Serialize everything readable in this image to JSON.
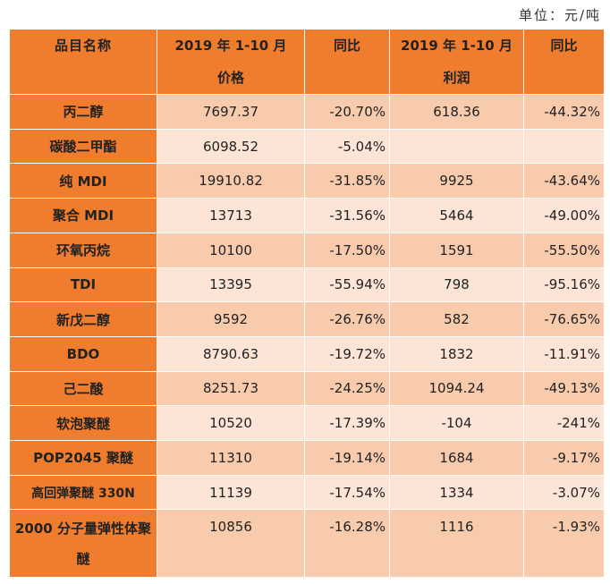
{
  "unit_label": "单位：元/吨",
  "headers": {
    "col1": "品目名称",
    "col2_line1": "2019 年 1-10 月",
    "col2_line2": "价格",
    "col3": "同比",
    "col4_line1": "2019 年 1-10 月",
    "col4_line2": "利润",
    "col5": "同比"
  },
  "rows": [
    {
      "name": "丙二醇",
      "price": "7697.37",
      "price_yoy": "-20.70%",
      "profit": "618.36",
      "profit_yoy": "-44.32%"
    },
    {
      "name": "碳酸二甲酯",
      "price": "6098.52",
      "price_yoy": "-5.04%",
      "profit": "",
      "profit_yoy": ""
    },
    {
      "name": "纯 MDI",
      "price": "19910.82",
      "price_yoy": "-31.85%",
      "profit": "9925",
      "profit_yoy": "-43.64%"
    },
    {
      "name": "聚合 MDI",
      "price": "13713",
      "price_yoy": "-31.56%",
      "profit": "5464",
      "profit_yoy": "-49.00%"
    },
    {
      "name": "环氧丙烷",
      "price": "10100",
      "price_yoy": "-17.50%",
      "profit": "1591",
      "profit_yoy": "-55.50%"
    },
    {
      "name": "TDI",
      "price": "13395",
      "price_yoy": "-55.94%",
      "profit": "798",
      "profit_yoy": "-95.16%"
    },
    {
      "name": "新戊二醇",
      "price": "9592",
      "price_yoy": "-26.76%",
      "profit": "582",
      "profit_yoy": "-76.65%"
    },
    {
      "name": "BDO",
      "price": "8790.63",
      "price_yoy": "-19.72%",
      "profit": "1832",
      "profit_yoy": "-11.91%"
    },
    {
      "name": "己二酸",
      "price": "8251.73",
      "price_yoy": "-24.25%",
      "profit": "1094.24",
      "profit_yoy": "-49.13%"
    },
    {
      "name": "软泡聚醚",
      "price": "10520",
      "price_yoy": "-17.39%",
      "profit": "-104",
      "profit_yoy": "-241%"
    },
    {
      "name": "POP2045 聚醚",
      "price": "11310",
      "price_yoy": "-19.14%",
      "profit": "1684",
      "profit_yoy": "-9.17%"
    },
    {
      "name": "高回弹聚醚 330N",
      "price": "11139",
      "price_yoy": "-17.54%",
      "profit": "1334",
      "profit_yoy": "-3.07%"
    },
    {
      "name": "2000 分子量弹性体聚醚",
      "price": "10856",
      "price_yoy": "-16.28%",
      "profit": "1116",
      "profit_yoy": "-1.93%"
    }
  ],
  "colors": {
    "header_orange": "#f07c2d",
    "row_dark": "#f8cbad",
    "row_light": "#fce4d6"
  }
}
